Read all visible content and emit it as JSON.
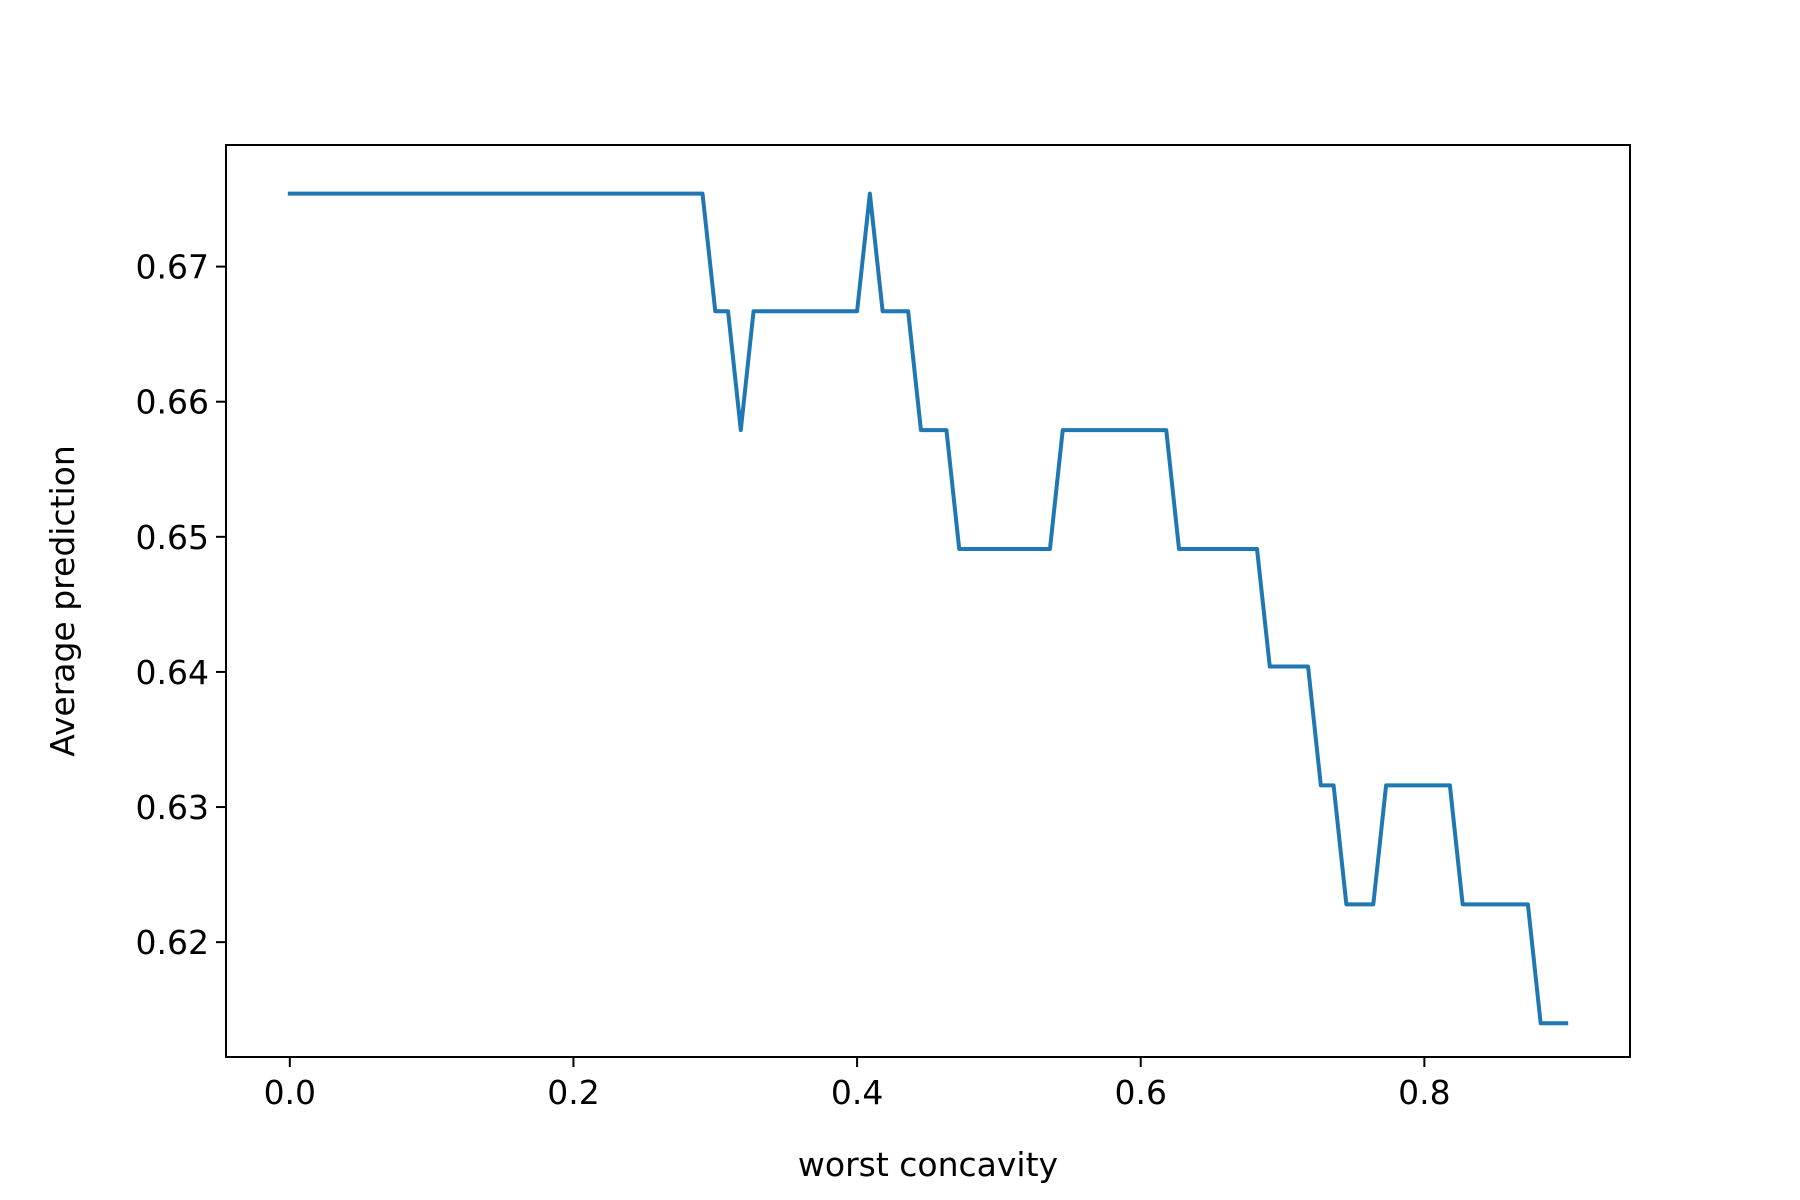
{
  "chart_data": {
    "type": "line",
    "title": "",
    "xlabel": "worst concavity",
    "ylabel": "Average prediction",
    "xlim": [
      -0.045,
      0.945
    ],
    "ylim": [
      0.6115,
      0.679
    ],
    "xticks": [
      0.0,
      0.2,
      0.4,
      0.6,
      0.8
    ],
    "xtick_labels": [
      "0.0",
      "0.2",
      "0.4",
      "0.6",
      "0.8"
    ],
    "yticks": [
      0.62,
      0.63,
      0.64,
      0.65,
      0.66,
      0.67
    ],
    "ytick_labels": [
      "0.62",
      "0.63",
      "0.64",
      "0.65",
      "0.66",
      "0.67"
    ],
    "grid": false,
    "legend": "none",
    "series": [
      {
        "color": "#1f77b4",
        "x": [
          0.0,
          0.291,
          0.3,
          0.309,
          0.318,
          0.327,
          0.4,
          0.409,
          0.418,
          0.436,
          0.445,
          0.463,
          0.472,
          0.536,
          0.545,
          0.618,
          0.627,
          0.682,
          0.691,
          0.718,
          0.727,
          0.736,
          0.745,
          0.764,
          0.773,
          0.818,
          0.827,
          0.873,
          0.882,
          0.9
        ],
        "y": [
          0.6754,
          0.6754,
          0.6667,
          0.6667,
          0.6579,
          0.6667,
          0.6667,
          0.6754,
          0.6667,
          0.6667,
          0.6579,
          0.6579,
          0.6491,
          0.6491,
          0.6579,
          0.6579,
          0.6491,
          0.6491,
          0.6404,
          0.6404,
          0.6316,
          0.6316,
          0.6228,
          0.6228,
          0.6316,
          0.6316,
          0.6228,
          0.6228,
          0.614,
          0.614
        ]
      }
    ]
  }
}
